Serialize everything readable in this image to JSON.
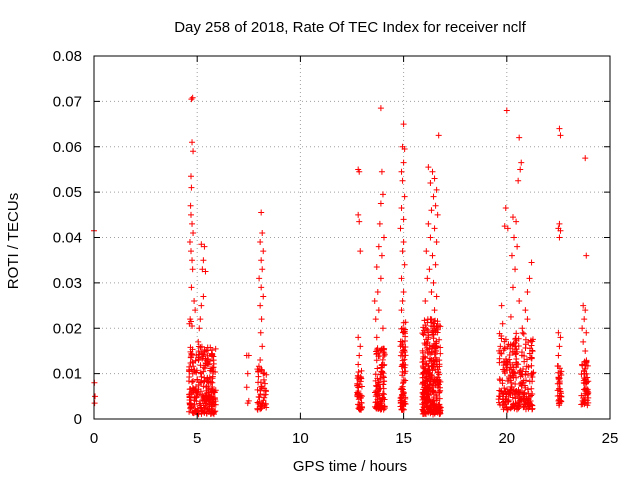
{
  "chart_data": {
    "type": "scatter",
    "title": "Day 258 of 2018, Rate Of TEC Index for receiver nclf",
    "xlabel": "GPS time / hours",
    "ylabel": "ROTI / TECUs",
    "xlim": [
      0,
      25
    ],
    "ylim": [
      0,
      0.08
    ],
    "xticks": [
      0,
      5,
      10,
      15,
      20,
      25
    ],
    "xtick_labels": [
      "0",
      "5",
      "10",
      "15",
      "20",
      "25"
    ],
    "yticks": [
      0,
      0.01,
      0.02,
      0.03,
      0.04,
      0.05,
      0.06,
      0.07,
      0.08
    ],
    "ytick_labels": [
      "0",
      "0.01",
      "0.02",
      "0.03",
      "0.04",
      "0.05",
      "0.06",
      "0.07",
      "0.08"
    ],
    "grid": true,
    "marker": "+",
    "color": "#ff0000",
    "series": [
      {
        "name": "ROTI",
        "points": [
          [
            0.0,
            0.0415
          ],
          [
            0.02,
            0.008
          ],
          [
            0.05,
            0.005
          ],
          [
            0.03,
            0.0035
          ],
          [
            4.72,
            0.0705
          ],
          [
            4.78,
            0.0708
          ],
          [
            4.75,
            0.061
          ],
          [
            4.8,
            0.059
          ],
          [
            4.7,
            0.0535
          ],
          [
            4.72,
            0.051
          ],
          [
            4.68,
            0.047
          ],
          [
            4.7,
            0.045
          ],
          [
            4.75,
            0.043
          ],
          [
            4.8,
            0.041
          ],
          [
            4.65,
            0.039
          ],
          [
            4.7,
            0.037
          ],
          [
            4.75,
            0.035
          ],
          [
            4.78,
            0.033
          ],
          [
            4.72,
            0.029
          ],
          [
            4.66,
            0.022
          ],
          [
            4.7,
            0.0215
          ],
          [
            4.62,
            0.021
          ],
          [
            4.75,
            0.0205
          ],
          [
            4.85,
            0.026
          ],
          [
            4.9,
            0.024
          ],
          [
            5.2,
            0.0385
          ],
          [
            5.35,
            0.038
          ],
          [
            5.3,
            0.035
          ],
          [
            5.25,
            0.033
          ],
          [
            5.4,
            0.0325
          ],
          [
            5.3,
            0.027
          ],
          [
            5.2,
            0.025
          ],
          [
            5.15,
            0.022
          ],
          [
            5.1,
            0.02
          ],
          [
            5.05,
            0.017
          ],
          [
            7.4,
            0.014
          ],
          [
            7.5,
            0.014
          ],
          [
            7.45,
            0.01
          ],
          [
            7.4,
            0.007
          ],
          [
            7.5,
            0.004
          ],
          [
            7.45,
            0.0035
          ],
          [
            8.1,
            0.0455
          ],
          [
            8.15,
            0.041
          ],
          [
            8.05,
            0.039
          ],
          [
            8.2,
            0.037
          ],
          [
            8.1,
            0.035
          ],
          [
            8.15,
            0.033
          ],
          [
            8.0,
            0.031
          ],
          [
            8.1,
            0.029
          ],
          [
            8.2,
            0.027
          ],
          [
            8.05,
            0.025
          ],
          [
            8.12,
            0.022
          ],
          [
            8.08,
            0.019
          ],
          [
            8.15,
            0.016
          ],
          [
            8.05,
            0.013
          ],
          [
            8.2,
            0.01
          ],
          [
            12.8,
            0.055
          ],
          [
            12.85,
            0.0545
          ],
          [
            12.8,
            0.045
          ],
          [
            12.85,
            0.0435
          ],
          [
            12.9,
            0.037
          ],
          [
            12.8,
            0.018
          ],
          [
            12.9,
            0.016
          ],
          [
            12.85,
            0.014
          ],
          [
            12.8,
            0.012
          ],
          [
            13.9,
            0.0685
          ],
          [
            13.95,
            0.0545
          ],
          [
            14.0,
            0.0495
          ],
          [
            13.9,
            0.0475
          ],
          [
            13.85,
            0.043
          ],
          [
            14.05,
            0.04
          ],
          [
            13.8,
            0.038
          ],
          [
            13.95,
            0.036
          ],
          [
            13.7,
            0.0335
          ],
          [
            13.9,
            0.031
          ],
          [
            13.75,
            0.028
          ],
          [
            13.6,
            0.026
          ],
          [
            13.8,
            0.024
          ],
          [
            13.65,
            0.022
          ],
          [
            14.0,
            0.02
          ],
          [
            13.7,
            0.018
          ],
          [
            15.0,
            0.065
          ],
          [
            14.95,
            0.06
          ],
          [
            15.05,
            0.0595
          ],
          [
            15.0,
            0.0565
          ],
          [
            14.9,
            0.0545
          ],
          [
            14.95,
            0.0525
          ],
          [
            15.05,
            0.049
          ],
          [
            14.9,
            0.0465
          ],
          [
            15.0,
            0.044
          ],
          [
            14.85,
            0.042
          ],
          [
            15.0,
            0.039
          ],
          [
            14.95,
            0.037
          ],
          [
            15.05,
            0.034
          ],
          [
            14.9,
            0.031
          ],
          [
            15.0,
            0.028
          ],
          [
            14.95,
            0.026
          ],
          [
            14.9,
            0.024
          ],
          [
            16.7,
            0.0625
          ],
          [
            16.2,
            0.0555
          ],
          [
            16.4,
            0.0545
          ],
          [
            16.5,
            0.053
          ],
          [
            16.3,
            0.052
          ],
          [
            16.6,
            0.0505
          ],
          [
            16.45,
            0.049
          ],
          [
            16.55,
            0.047
          ],
          [
            16.35,
            0.046
          ],
          [
            16.65,
            0.045
          ],
          [
            16.2,
            0.043
          ],
          [
            16.5,
            0.042
          ],
          [
            16.3,
            0.04
          ],
          [
            16.6,
            0.039
          ],
          [
            16.1,
            0.037
          ],
          [
            16.4,
            0.036
          ],
          [
            16.55,
            0.034
          ],
          [
            16.25,
            0.033
          ],
          [
            16.15,
            0.031
          ],
          [
            16.45,
            0.03
          ],
          [
            16.35,
            0.028
          ],
          [
            16.6,
            0.027
          ],
          [
            16.05,
            0.026
          ],
          [
            16.5,
            0.024
          ],
          [
            16.3,
            0.022
          ],
          [
            20.0,
            0.068
          ],
          [
            20.6,
            0.062
          ],
          [
            20.7,
            0.0565
          ],
          [
            20.65,
            0.055
          ],
          [
            20.55,
            0.0525
          ],
          [
            19.95,
            0.0465
          ],
          [
            20.3,
            0.0445
          ],
          [
            20.45,
            0.0435
          ],
          [
            19.9,
            0.0425
          ],
          [
            20.05,
            0.042
          ],
          [
            20.35,
            0.04
          ],
          [
            20.5,
            0.038
          ],
          [
            20.25,
            0.036
          ],
          [
            21.2,
            0.0345
          ],
          [
            20.4,
            0.033
          ],
          [
            21.1,
            0.031
          ],
          [
            20.3,
            0.029
          ],
          [
            21.0,
            0.028
          ],
          [
            20.6,
            0.026
          ],
          [
            19.75,
            0.025
          ],
          [
            20.9,
            0.024
          ],
          [
            20.2,
            0.0225
          ],
          [
            21.0,
            0.022
          ],
          [
            19.8,
            0.021
          ],
          [
            20.75,
            0.02
          ],
          [
            22.55,
            0.064
          ],
          [
            22.6,
            0.0625
          ],
          [
            22.55,
            0.043
          ],
          [
            22.5,
            0.042
          ],
          [
            22.6,
            0.0415
          ],
          [
            22.55,
            0.04
          ],
          [
            22.5,
            0.019
          ],
          [
            22.6,
            0.018
          ],
          [
            22.55,
            0.016
          ],
          [
            22.5,
            0.014
          ],
          [
            23.8,
            0.0575
          ],
          [
            23.85,
            0.036
          ],
          [
            23.7,
            0.025
          ],
          [
            23.8,
            0.024
          ],
          [
            23.75,
            0.022
          ],
          [
            23.65,
            0.02
          ],
          [
            23.85,
            0.019
          ],
          [
            23.7,
            0.017
          ],
          [
            23.8,
            0.015
          ]
        ]
      }
    ],
    "dense_clusters": [
      {
        "x_range": [
          4.6,
          5.9
        ],
        "y_range": [
          0.001,
          0.016
        ],
        "count": 260
      },
      {
        "x_range": [
          7.9,
          8.35
        ],
        "y_range": [
          0.002,
          0.012
        ],
        "count": 50
      },
      {
        "x_range": [
          12.75,
          13.0
        ],
        "y_range": [
          0.002,
          0.011
        ],
        "count": 45
      },
      {
        "x_range": [
          13.6,
          14.1
        ],
        "y_range": [
          0.002,
          0.016
        ],
        "count": 110
      },
      {
        "x_range": [
          14.85,
          15.1
        ],
        "y_range": [
          0.002,
          0.022
        ],
        "count": 80
      },
      {
        "x_range": [
          15.9,
          16.8
        ],
        "y_range": [
          0.001,
          0.022
        ],
        "count": 320
      },
      {
        "x_range": [
          19.6,
          21.3
        ],
        "y_range": [
          0.002,
          0.019
        ],
        "count": 260
      },
      {
        "x_range": [
          22.45,
          22.65
        ],
        "y_range": [
          0.003,
          0.012
        ],
        "count": 40
      },
      {
        "x_range": [
          23.6,
          23.95
        ],
        "y_range": [
          0.003,
          0.013
        ],
        "count": 60
      }
    ]
  }
}
